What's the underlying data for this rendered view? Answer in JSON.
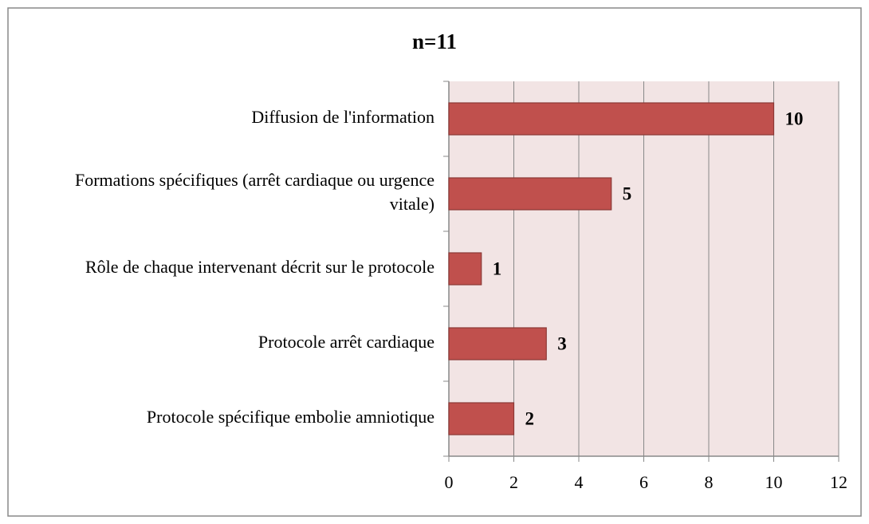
{
  "chart_data": {
    "type": "bar",
    "orientation": "horizontal",
    "title": "n=11",
    "categories": [
      "Diffusion de l'information",
      "Formations spécifiques (arrêt cardiaque ou urgence vitale)",
      "Rôle de chaque intervenant décrit sur le protocole",
      "Protocole arrêt cardiaque",
      "Protocole spécifique embolie amniotique"
    ],
    "values": [
      10,
      5,
      1,
      3,
      2
    ],
    "color": "#c0504d",
    "xlim": [
      0,
      12
    ],
    "xticks": [
      0,
      2,
      4,
      6,
      8,
      10,
      12
    ],
    "grid": true
  }
}
